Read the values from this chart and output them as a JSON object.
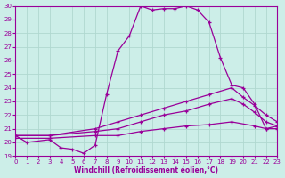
{
  "xlabel": "Windchill (Refroidissement éolien,°C)",
  "xlim": [
    0,
    23
  ],
  "ylim": [
    19,
    30
  ],
  "yticks": [
    19,
    20,
    21,
    22,
    23,
    24,
    25,
    26,
    27,
    28,
    29,
    30
  ],
  "xticks": [
    0,
    1,
    2,
    3,
    4,
    5,
    6,
    7,
    8,
    9,
    10,
    11,
    12,
    13,
    14,
    15,
    16,
    17,
    18,
    19,
    20,
    21,
    22,
    23
  ],
  "bg_color": "#cceee8",
  "grid_color": "#b0d8d0",
  "line_color": "#990099",
  "lines": [
    {
      "x": [
        0,
        1,
        3,
        4,
        5,
        6,
        7,
        8,
        9,
        10,
        11,
        12,
        13,
        14,
        15,
        16,
        17,
        18,
        19,
        20,
        21,
        22,
        23
      ],
      "y": [
        20.5,
        20.0,
        20.2,
        19.6,
        19.5,
        19.2,
        19.8,
        23.5,
        26.7,
        27.8,
        30.0,
        29.7,
        29.8,
        29.8,
        30.0,
        29.7,
        28.8,
        26.2,
        24.2,
        24.0,
        22.8,
        21.0,
        21.2
      ]
    },
    {
      "x": [
        0,
        3,
        7,
        9,
        11,
        13,
        15,
        17,
        19,
        20,
        21,
        22,
        23
      ],
      "y": [
        20.5,
        20.5,
        21.0,
        21.5,
        22.0,
        22.5,
        23.0,
        23.5,
        24.0,
        23.3,
        22.7,
        22.0,
        21.5
      ]
    },
    {
      "x": [
        0,
        3,
        7,
        9,
        11,
        13,
        15,
        17,
        19,
        20,
        21,
        22,
        23
      ],
      "y": [
        20.5,
        20.5,
        20.8,
        21.0,
        21.5,
        22.0,
        22.3,
        22.8,
        23.2,
        22.8,
        22.2,
        21.5,
        21.2
      ]
    },
    {
      "x": [
        0,
        3,
        7,
        9,
        11,
        13,
        15,
        17,
        19,
        21,
        22,
        23
      ],
      "y": [
        20.3,
        20.3,
        20.5,
        20.5,
        20.8,
        21.0,
        21.2,
        21.3,
        21.5,
        21.2,
        21.0,
        21.0
      ]
    }
  ]
}
